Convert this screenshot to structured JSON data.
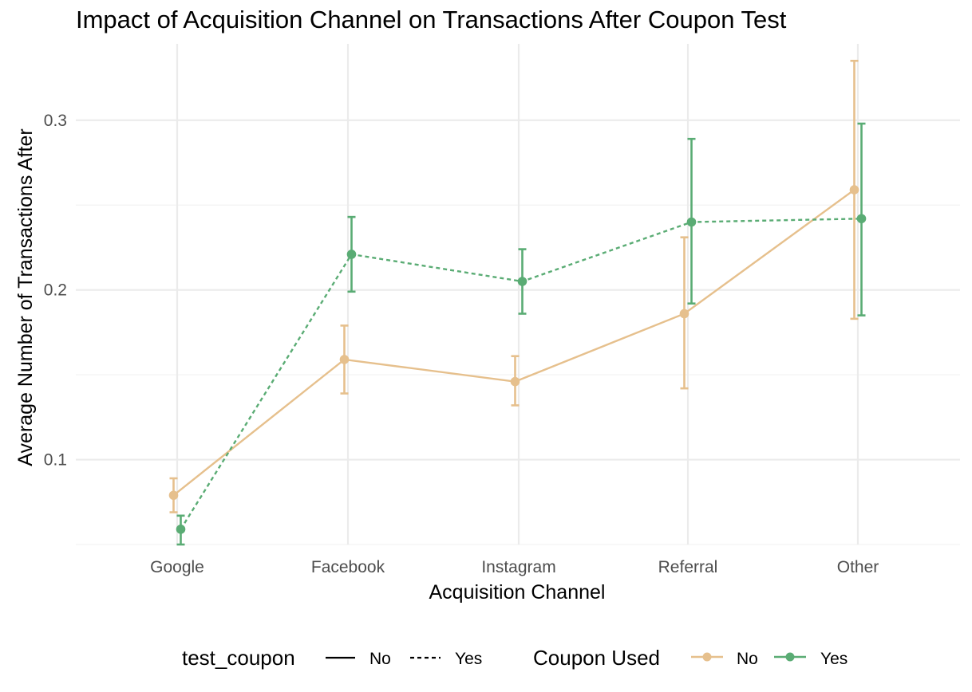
{
  "chart_data": {
    "type": "line",
    "title": "Impact of Acquisition Channel on Transactions After Coupon Test",
    "xlabel": "Acquisition Channel",
    "ylabel": "Average Number of Transactions After",
    "categories": [
      "Google",
      "Facebook",
      "Instagram",
      "Referral",
      "Other"
    ],
    "ylim": [
      0.05,
      0.345
    ],
    "yticks": [
      0.1,
      0.2,
      0.3
    ],
    "ytick_labels": [
      "0.1",
      "0.2",
      "0.3"
    ],
    "grid": true,
    "series": [
      {
        "name": "No",
        "linetype": "solid",
        "color": "#e6c08d",
        "values": [
          0.079,
          0.159,
          0.146,
          0.186,
          0.259
        ],
        "lower": [
          0.069,
          0.139,
          0.132,
          0.142,
          0.183
        ],
        "upper": [
          0.089,
          0.179,
          0.161,
          0.231,
          0.335
        ]
      },
      {
        "name": "Yes",
        "linetype": "dashed",
        "color": "#5aac74",
        "values": [
          0.059,
          0.221,
          0.205,
          0.24,
          0.242
        ],
        "lower": [
          0.05,
          0.199,
          0.186,
          0.192,
          0.185
        ],
        "upper": [
          0.067,
          0.243,
          0.224,
          0.289,
          0.298
        ]
      }
    ],
    "legend": {
      "position": "bottom",
      "linetype_title": "test_coupon",
      "linetype_items": [
        {
          "label": "No",
          "linetype": "solid"
        },
        {
          "label": "Yes",
          "linetype": "dashed"
        }
      ],
      "color_title": "Coupon Used",
      "color_items": [
        {
          "label": "No",
          "color": "#e6c08d"
        },
        {
          "label": "Yes",
          "color": "#5aac74"
        }
      ]
    }
  }
}
